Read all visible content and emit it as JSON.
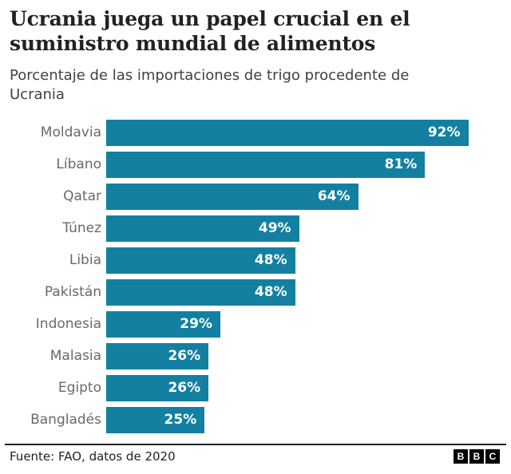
{
  "header": {
    "title": "Ucrania juega un papel crucial en el suministro mundial de alimentos",
    "subtitle": "Porcentaje de las importaciones de trigo procedente de Ucrania"
  },
  "chart_data": {
    "type": "bar",
    "orientation": "horizontal",
    "title": "Ucrania juega un papel crucial en el suministro mundial de alimentos",
    "subtitle": "Porcentaje de las importaciones de trigo procedente de Ucrania",
    "categories": [
      "Moldavia",
      "Líbano",
      "Qatar",
      "Túnez",
      "Libia",
      "Pakistán",
      "Indonesia",
      "Malasia",
      "Egipto",
      "Bangladés"
    ],
    "values": [
      92,
      81,
      64,
      49,
      48,
      48,
      29,
      26,
      26,
      25
    ],
    "value_labels": [
      "92%",
      "81%",
      "64%",
      "49%",
      "48%",
      "48%",
      "29%",
      "26%",
      "26%",
      "25%"
    ],
    "xlabel": "",
    "ylabel": "",
    "xlim": [
      0,
      100
    ],
    "grid": false,
    "legend": false,
    "bar_color": "#1380A1",
    "category_label_color": "#696969",
    "value_label_color": "#ffffff"
  },
  "footer": {
    "source": "Fuente: FAO, datos de 2020",
    "logo_letters": [
      "B",
      "B",
      "C"
    ]
  }
}
